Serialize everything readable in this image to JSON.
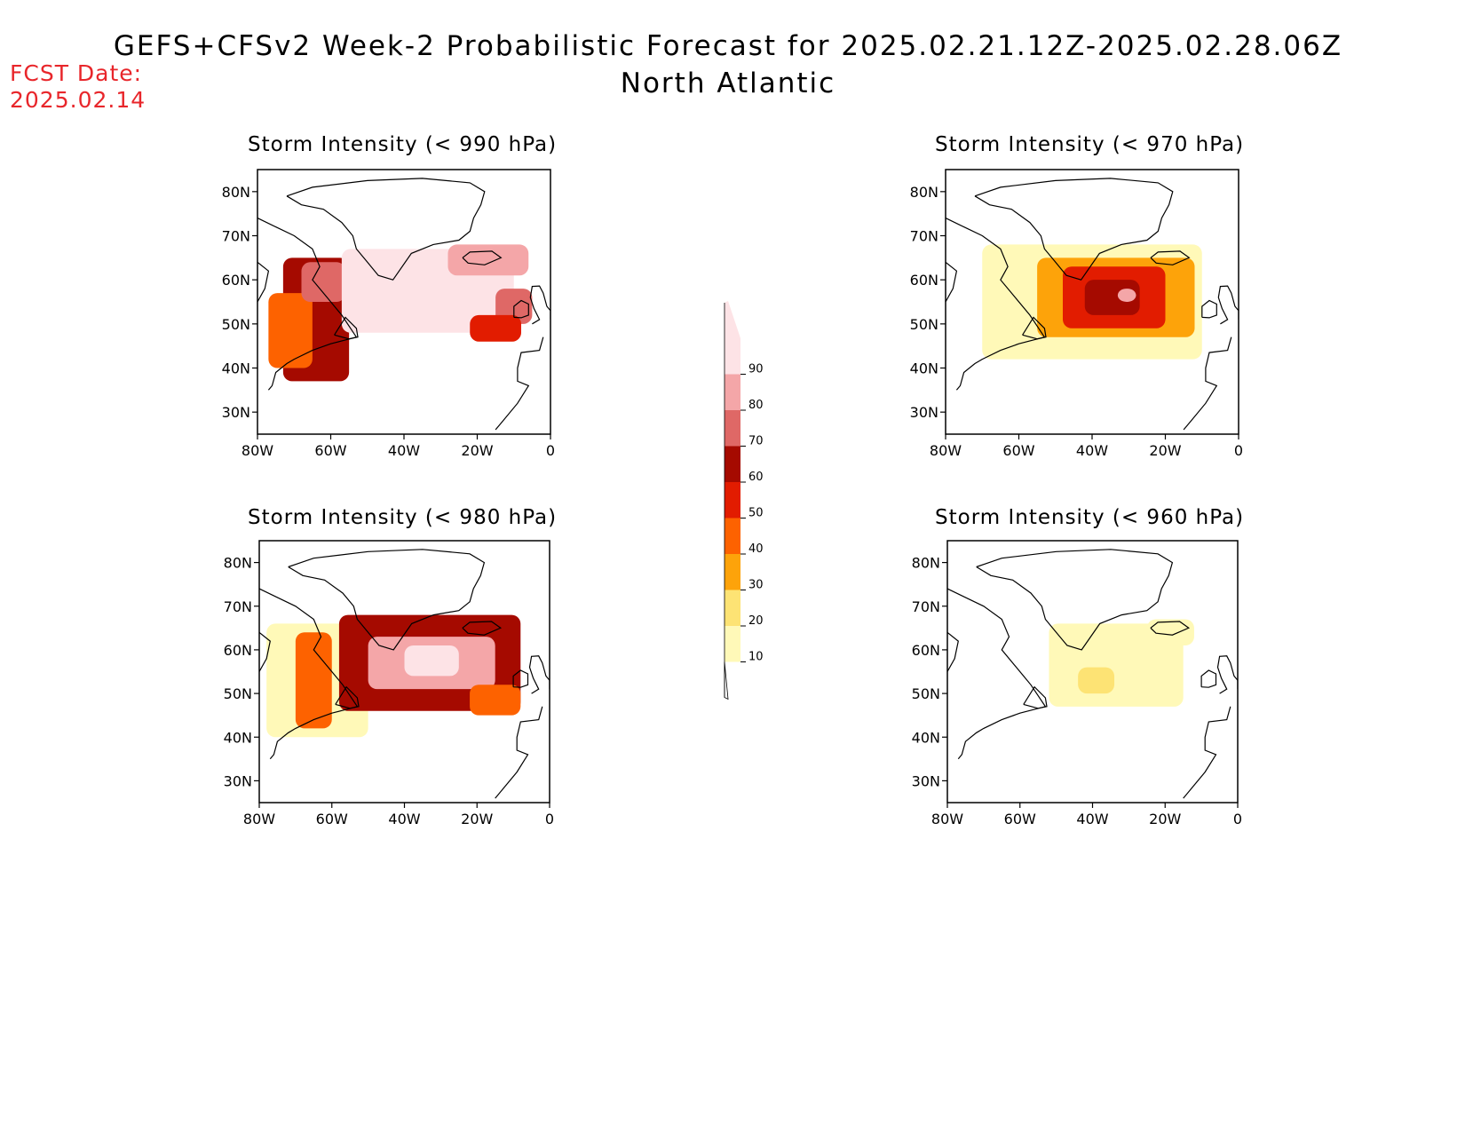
{
  "header": {
    "title": "GEFS+CFSv2 Week-2 Probabilistic Forecast for 2025.02.21.12Z-2025.02.28.06Z",
    "subtitle": "North Atlantic",
    "fcst_label": "FCST Date:",
    "fcst_date": "2025.02.14"
  },
  "axes": {
    "lat_labels": [
      "80N",
      "70N",
      "60N",
      "50N",
      "40N",
      "30N"
    ],
    "lon_labels": [
      "80W",
      "60W",
      "40W",
      "20W",
      "0"
    ],
    "lat_range": [
      25,
      85
    ],
    "lon_range": [
      -80,
      0
    ]
  },
  "panels": [
    {
      "title": "Storm Intensity (< 990 hPa)",
      "threshold_hpa": 990
    },
    {
      "title": "Storm Intensity (< 970 hPa)",
      "threshold_hpa": 970
    },
    {
      "title": "Storm Intensity (< 980 hPa)",
      "threshold_hpa": 980
    },
    {
      "title": "Storm Intensity (< 960 hPa)",
      "threshold_hpa": 960
    }
  ],
  "colorbar": {
    "labels": [
      "10",
      "20",
      "30",
      "40",
      "50",
      "60",
      "70",
      "80",
      "90"
    ],
    "colors": [
      "#fff9b8",
      "#fde374",
      "#fda30a",
      "#fd6200",
      "#e21c00",
      "#a50a00",
      "#df6866",
      "#f4a6a8",
      "#fde3e6"
    ]
  },
  "chart_data": [
    {
      "type": "heatmap",
      "title": "Storm Intensity (< 990 hPa)",
      "lon": [
        -80,
        0
      ],
      "lat": [
        25,
        85
      ],
      "regions": [
        {
          "level": 60,
          "lon": [
            -73,
            -55
          ],
          "lat": [
            37,
            65
          ]
        },
        {
          "level": 40,
          "lon": [
            -77,
            -65
          ],
          "lat": [
            40,
            57
          ]
        },
        {
          "level": 70,
          "lon": [
            -68,
            -56
          ],
          "lat": [
            55,
            64
          ]
        },
        {
          "level": 90,
          "lon": [
            -57,
            -10
          ],
          "lat": [
            48,
            67
          ]
        },
        {
          "level": 80,
          "lon": [
            -28,
            -6
          ],
          "lat": [
            61,
            68
          ]
        },
        {
          "level": 70,
          "lon": [
            -15,
            -5
          ],
          "lat": [
            50,
            58
          ]
        },
        {
          "level": 50,
          "lon": [
            -22,
            -8
          ],
          "lat": [
            46,
            52
          ]
        }
      ]
    },
    {
      "type": "heatmap",
      "title": "Storm Intensity (< 970 hPa)",
      "lon": [
        -80,
        0
      ],
      "lat": [
        25,
        85
      ],
      "regions": [
        {
          "level": 10,
          "lon": [
            -70,
            -10
          ],
          "lat": [
            42,
            68
          ]
        },
        {
          "level": 30,
          "lon": [
            -55,
            -12
          ],
          "lat": [
            47,
            65
          ]
        },
        {
          "level": 50,
          "lon": [
            -48,
            -20
          ],
          "lat": [
            49,
            63
          ]
        },
        {
          "level": 60,
          "lon": [
            -42,
            -27
          ],
          "lat": [
            52,
            60
          ]
        },
        {
          "level": 80,
          "lon": [
            -33,
            -28
          ],
          "lat": [
            55,
            58
          ]
        }
      ]
    },
    {
      "type": "heatmap",
      "title": "Storm Intensity (< 980 hPa)",
      "lon": [
        -80,
        0
      ],
      "lat": [
        25,
        85
      ],
      "regions": [
        {
          "level": 10,
          "lon": [
            -78,
            -50
          ],
          "lat": [
            40,
            66
          ]
        },
        {
          "level": 40,
          "lon": [
            -70,
            -60
          ],
          "lat": [
            42,
            64
          ]
        },
        {
          "level": 60,
          "lon": [
            -58,
            -8
          ],
          "lat": [
            46,
            68
          ]
        },
        {
          "level": 80,
          "lon": [
            -50,
            -15
          ],
          "lat": [
            51,
            63
          ]
        },
        {
          "level": 90,
          "lon": [
            -40,
            -25
          ],
          "lat": [
            54,
            61
          ]
        },
        {
          "level": 40,
          "lon": [
            -22,
            -8
          ],
          "lat": [
            45,
            52
          ]
        }
      ]
    },
    {
      "type": "heatmap",
      "title": "Storm Intensity (< 960 hPa)",
      "lon": [
        -80,
        0
      ],
      "lat": [
        25,
        85
      ],
      "regions": [
        {
          "level": 10,
          "lon": [
            -52,
            -15
          ],
          "lat": [
            47,
            66
          ]
        },
        {
          "level": 20,
          "lon": [
            -44,
            -34
          ],
          "lat": [
            50,
            56
          ]
        },
        {
          "level": 10,
          "lon": [
            -25,
            -12
          ],
          "lat": [
            61,
            67
          ]
        }
      ]
    }
  ]
}
